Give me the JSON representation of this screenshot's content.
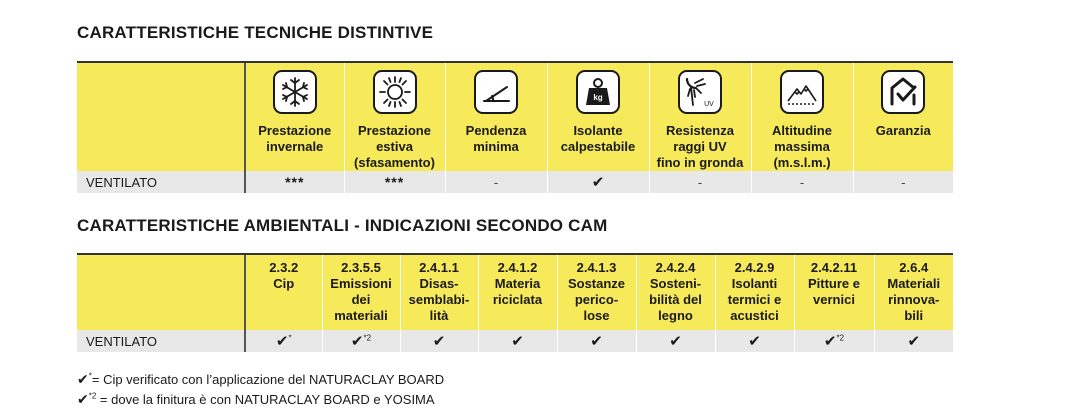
{
  "section1": {
    "title": "CARATTERISTICHE TECNICHE DISTINTIVE",
    "columns": [
      {
        "icon": "snowflake-icon",
        "label": [
          "Prestazione",
          "invernale"
        ]
      },
      {
        "icon": "sun-icon",
        "label": [
          "Prestazione",
          "estiva",
          "(sfasamento)"
        ]
      },
      {
        "icon": "slope-icon",
        "label": [
          "Pendenza",
          "minima"
        ]
      },
      {
        "icon": "weight-kg-icon",
        "label": [
          "Isolante",
          "calpestabile"
        ]
      },
      {
        "icon": "uv-rays-icon",
        "label": [
          "Resistenza",
          "raggi UV",
          "fino in gronda"
        ]
      },
      {
        "icon": "mountain-icon",
        "label": [
          "Altitudine",
          "massima",
          "(m.s.l.m.)"
        ]
      },
      {
        "icon": "warranty-house-icon",
        "label": [
          "Garanzia"
        ]
      }
    ],
    "row": {
      "label": "VENTILATO",
      "values": [
        "***",
        "***",
        "-",
        "✔",
        "-",
        "-",
        "-"
      ]
    }
  },
  "section2": {
    "title": "CARATTERISTICHE AMBIENTALI - INDICAZIONI SECONDO CAM",
    "columns": [
      {
        "code": "2.3.2",
        "label": [
          "Cip"
        ]
      },
      {
        "code": "2.3.5.5",
        "label": [
          "Emissioni",
          "dei",
          "materiali"
        ]
      },
      {
        "code": "2.4.1.1",
        "label": [
          "Disas-",
          "semblabi-",
          "lità"
        ]
      },
      {
        "code": "2.4.1.2",
        "label": [
          "Materia",
          "riciclata"
        ]
      },
      {
        "code": "2.4.1.3",
        "label": [
          "Sostanze",
          "perico-",
          "lose"
        ]
      },
      {
        "code": "2.4.2.4",
        "label": [
          "Sosteni-",
          "bilità del",
          "legno"
        ]
      },
      {
        "code": "2.4.2.9",
        "label": [
          "Isolanti",
          "termici e",
          "acustici"
        ]
      },
      {
        "code": "2.4.2.11",
        "label": [
          "Pitture e",
          "vernici"
        ]
      },
      {
        "code": "2.6.4",
        "label": [
          "Materiali",
          "rinnova-",
          "bili"
        ]
      }
    ],
    "row": {
      "label": "VENTILATO",
      "values": [
        {
          "mark": "✔",
          "note": "*"
        },
        {
          "mark": "✔",
          "note": "*2"
        },
        {
          "mark": "✔",
          "note": ""
        },
        {
          "mark": "✔",
          "note": ""
        },
        {
          "mark": "✔",
          "note": ""
        },
        {
          "mark": "✔",
          "note": ""
        },
        {
          "mark": "✔",
          "note": ""
        },
        {
          "mark": "✔",
          "note": "*2"
        },
        {
          "mark": "✔",
          "note": ""
        }
      ]
    }
  },
  "footnotes": [
    {
      "mark": "✔",
      "note": "*",
      "text": "= Cip verificato con l’applicazione del NATURACLAY BOARD"
    },
    {
      "mark": "✔",
      "note": "*2",
      "text": " = dove la finitura è con NATURACLAY BOARD e YOSIMA"
    }
  ],
  "colors": {
    "header_yellow": "#f6ea5a",
    "row_gray": "#e8e8e8"
  }
}
